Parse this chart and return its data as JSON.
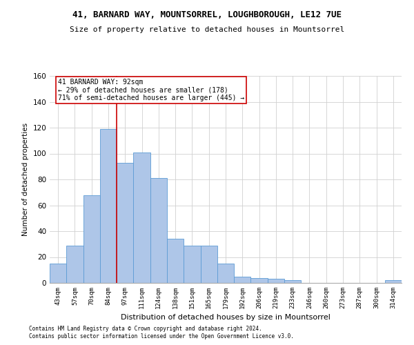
{
  "title_line1": "41, BARNARD WAY, MOUNTSORREL, LOUGHBOROUGH, LE12 7UE",
  "title_line2": "Size of property relative to detached houses in Mountsorrel",
  "xlabel": "Distribution of detached houses by size in Mountsorrel",
  "ylabel": "Number of detached properties",
  "categories": [
    "43sqm",
    "57sqm",
    "70sqm",
    "84sqm",
    "97sqm",
    "111sqm",
    "124sqm",
    "138sqm",
    "151sqm",
    "165sqm",
    "179sqm",
    "192sqm",
    "206sqm",
    "219sqm",
    "233sqm",
    "246sqm",
    "260sqm",
    "273sqm",
    "287sqm",
    "300sqm",
    "314sqm"
  ],
  "values": [
    15,
    29,
    68,
    119,
    93,
    101,
    81,
    34,
    29,
    29,
    15,
    5,
    4,
    3,
    2,
    0,
    0,
    0,
    0,
    0,
    2
  ],
  "bar_color": "#aec6e8",
  "bar_edge_color": "#5b9bd5",
  "property_line_x": 3.5,
  "annotation_text_line1": "41 BARNARD WAY: 92sqm",
  "annotation_text_line2": "← 29% of detached houses are smaller (178)",
  "annotation_text_line3": "71% of semi-detached houses are larger (445) →",
  "annotation_box_color": "#ffffff",
  "annotation_box_edge_color": "#cc0000",
  "red_line_color": "#cc0000",
  "ylim": [
    0,
    160
  ],
  "yticks": [
    0,
    20,
    40,
    60,
    80,
    100,
    120,
    140,
    160
  ],
  "footnote1": "Contains HM Land Registry data © Crown copyright and database right 2024.",
  "footnote2": "Contains public sector information licensed under the Open Government Licence v3.0.",
  "background_color": "#ffffff",
  "grid_color": "#d0d0d0",
  "title1_fontsize": 9,
  "title2_fontsize": 8,
  "ylabel_fontsize": 7.5,
  "xlabel_fontsize": 8,
  "xtick_fontsize": 6.5,
  "ytick_fontsize": 7.5,
  "annot_fontsize": 7,
  "footnote_fontsize": 5.5
}
